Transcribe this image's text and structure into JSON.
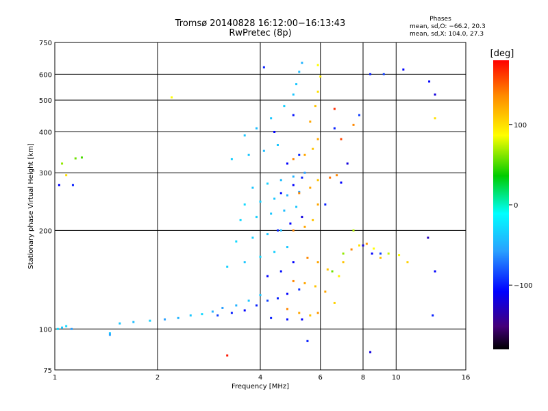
{
  "title_line1": "Tromsø 20140828 16:12:00−16:13:43",
  "title_line2": "RwPretec (8p)",
  "phases_box": {
    "title": "Phases",
    "o_line": "mean, sd,O: −66.2, 20.3",
    "x_line": "mean, sd,X: 104.0, 27.3"
  },
  "colorbar": {
    "unit_label": "[deg]",
    "ticks": [
      {
        "label": "100",
        "value": 100
      },
      {
        "label": "0",
        "value": 0
      },
      {
        "label": "−100",
        "value": -100
      }
    ],
    "range": [
      -180,
      180
    ]
  },
  "chart_data": {
    "type": "scatter",
    "xlabel": "Frequency [MHz]",
    "ylabel": "Stationary phase Virtual Height [km]",
    "xscale": "log",
    "yscale": "log",
    "xlim": [
      1,
      16
    ],
    "ylim": [
      75,
      750
    ],
    "xticks": [
      {
        "label": "1",
        "value": 1
      },
      {
        "label": "2",
        "value": 2
      },
      {
        "label": "4",
        "value": 4
      },
      {
        "label": "6",
        "value": 6
      },
      {
        "label": "8",
        "value": 8
      },
      {
        "label": "10",
        "value": 10
      },
      {
        "label": "16",
        "value": 16
      }
    ],
    "yticks": [
      {
        "label": "75",
        "value": 75
      },
      {
        "label": "100",
        "value": 100
      },
      {
        "label": "200",
        "value": 200
      },
      {
        "label": "300",
        "value": 300
      },
      {
        "label": "400",
        "value": 400
      },
      {
        "label": "500",
        "value": 500
      },
      {
        "label": "600",
        "value": 600
      },
      {
        "label": "750",
        "value": 750
      }
    ],
    "grid": true,
    "series": [
      {
        "points": [
          [
            1.02,
            100,
            -30
          ],
          [
            1.05,
            101,
            -40
          ],
          [
            1.08,
            102,
            -30
          ],
          [
            1.12,
            100,
            -60
          ],
          [
            1.45,
            97,
            -40
          ],
          [
            1.55,
            104,
            -40
          ],
          [
            1.7,
            105,
            -45
          ],
          [
            1.9,
            106,
            -35
          ],
          [
            2.1,
            107,
            -60
          ],
          [
            2.3,
            108,
            -50
          ],
          [
            2.5,
            110,
            -40
          ],
          [
            2.7,
            111,
            -30
          ],
          [
            2.9,
            113,
            -50
          ],
          [
            3.1,
            116,
            -60
          ],
          [
            3.4,
            118,
            -50
          ],
          [
            3.7,
            122,
            -40
          ],
          [
            4.0,
            127,
            -40
          ],
          [
            3.0,
            110,
            -90
          ],
          [
            3.3,
            112,
            -100
          ],
          [
            3.6,
            114,
            -110
          ],
          [
            3.9,
            118,
            -100
          ],
          [
            4.2,
            122,
            -90
          ],
          [
            4.5,
            124,
            -100
          ],
          [
            4.8,
            128,
            -110
          ],
          [
            5.2,
            132,
            -95
          ],
          [
            4.3,
            108,
            -100
          ],
          [
            4.8,
            107,
            -105
          ],
          [
            5.3,
            107,
            -110
          ],
          [
            3.2,
            155,
            -35
          ],
          [
            3.6,
            160,
            -40
          ],
          [
            4.0,
            166,
            -30
          ],
          [
            4.4,
            172,
            -35
          ],
          [
            4.8,
            178,
            -40
          ],
          [
            3.4,
            185,
            -30
          ],
          [
            3.8,
            190,
            -35
          ],
          [
            4.2,
            195,
            -40
          ],
          [
            4.6,
            200,
            -45
          ],
          [
            3.5,
            215,
            -30
          ],
          [
            3.9,
            220,
            -35
          ],
          [
            4.3,
            225,
            -40
          ],
          [
            4.7,
            230,
            -45
          ],
          [
            5.1,
            236,
            -40
          ],
          [
            3.6,
            240,
            -30
          ],
          [
            4.0,
            245,
            -35
          ],
          [
            4.4,
            250,
            -40
          ],
          [
            4.8,
            256,
            -50
          ],
          [
            5.2,
            262,
            -60
          ],
          [
            3.8,
            270,
            -40
          ],
          [
            4.2,
            278,
            -35
          ],
          [
            4.6,
            285,
            -45
          ],
          [
            5.0,
            292,
            -50
          ],
          [
            5.4,
            300,
            -60
          ],
          [
            3.3,
            330,
            -35
          ],
          [
            3.7,
            340,
            -40
          ],
          [
            4.1,
            350,
            -45
          ],
          [
            4.5,
            365,
            -40
          ],
          [
            3.6,
            390,
            -40
          ],
          [
            3.9,
            410,
            -45
          ],
          [
            4.3,
            440,
            -40
          ],
          [
            4.7,
            480,
            -35
          ],
          [
            5.0,
            520,
            -40
          ],
          [
            5.1,
            560,
            -40
          ],
          [
            5.2,
            610,
            -45
          ],
          [
            5.3,
            650,
            -50
          ],
          [
            4.2,
            145,
            -110
          ],
          [
            4.6,
            150,
            -105
          ],
          [
            5.0,
            160,
            -110
          ],
          [
            4.5,
            200,
            -100
          ],
          [
            4.9,
            210,
            -110
          ],
          [
            5.3,
            220,
            -120
          ],
          [
            4.6,
            260,
            -105
          ],
          [
            5.0,
            275,
            -110
          ],
          [
            5.3,
            290,
            -100
          ],
          [
            4.8,
            320,
            -110
          ],
          [
            5.2,
            340,
            -100
          ],
          [
            4.4,
            400,
            -110
          ],
          [
            5.0,
            450,
            -105
          ],
          [
            4.8,
            115,
            150
          ],
          [
            5.2,
            112,
            140
          ],
          [
            5.6,
            110,
            130
          ],
          [
            5.9,
            112,
            145
          ],
          [
            5.0,
            140,
            150
          ],
          [
            5.4,
            138,
            140
          ],
          [
            5.8,
            135,
            130
          ],
          [
            6.2,
            130,
            140
          ],
          [
            6.6,
            120,
            125
          ],
          [
            5.5,
            165,
            150
          ],
          [
            5.9,
            160,
            140
          ],
          [
            6.3,
            152,
            130
          ],
          [
            6.8,
            145,
            115
          ],
          [
            5.0,
            200,
            150
          ],
          [
            5.4,
            205,
            140
          ],
          [
            5.7,
            215,
            130
          ],
          [
            5.9,
            240,
            140
          ],
          [
            5.2,
            260,
            150
          ],
          [
            5.6,
            270,
            140
          ],
          [
            5.9,
            285,
            130
          ],
          [
            5.0,
            330,
            150
          ],
          [
            5.4,
            340,
            140
          ],
          [
            5.7,
            355,
            130
          ],
          [
            5.9,
            380,
            140
          ],
          [
            5.6,
            430,
            140
          ],
          [
            5.8,
            480,
            130
          ],
          [
            5.9,
            530,
            120
          ],
          [
            6.0,
            590,
            115
          ],
          [
            5.9,
            640,
            110
          ],
          [
            7.0,
            160,
            130
          ],
          [
            7.4,
            175,
            150
          ],
          [
            7.8,
            180,
            120
          ],
          [
            8.2,
            182,
            145
          ],
          [
            8.6,
            176,
            110
          ],
          [
            9.0,
            165,
            130
          ],
          [
            9.5,
            170,
            95
          ],
          [
            10.2,
            168,
            110
          ],
          [
            10.8,
            160,
            125
          ],
          [
            6.4,
            290,
            155
          ],
          [
            6.7,
            295,
            150
          ],
          [
            6.5,
            150,
            70
          ],
          [
            7.0,
            170,
            80
          ],
          [
            7.5,
            200,
            90
          ],
          [
            8.0,
            180,
            -120
          ],
          [
            8.5,
            170,
            -110
          ],
          [
            9.0,
            170,
            -90
          ],
          [
            6.2,
            240,
            -100
          ],
          [
            6.9,
            280,
            -110
          ],
          [
            7.2,
            320,
            -120
          ],
          [
            6.6,
            410,
            -100
          ],
          [
            7.8,
            450,
            -90
          ],
          [
            13.0,
            520,
            -120
          ],
          [
            13.0,
            440,
            120
          ],
          [
            13.0,
            150,
            -110
          ],
          [
            12.8,
            110,
            -100
          ],
          [
            12.4,
            190,
            -130
          ],
          [
            6.6,
            470,
            170
          ],
          [
            6.9,
            380,
            165
          ],
          [
            7.5,
            420,
            150
          ],
          [
            8.4,
            85,
            -120
          ],
          [
            5.5,
            92,
            -100
          ],
          [
            1.03,
            275,
            -110
          ],
          [
            1.13,
            275,
            -100
          ],
          [
            1.05,
            320,
            80
          ],
          [
            1.15,
            332,
            70
          ],
          [
            1.2,
            334,
            60
          ],
          [
            1.08,
            295,
            120
          ],
          [
            3.2,
            83,
            175
          ],
          [
            1.45,
            96,
            -60
          ],
          [
            4.1,
            630,
            -100
          ],
          [
            10.5,
            620,
            -110
          ],
          [
            12.5,
            570,
            -110
          ],
          [
            2.2,
            510,
            110
          ],
          [
            9.2,
            600,
            -90
          ],
          [
            8.4,
            600,
            -100
          ]
        ]
      }
    ]
  }
}
